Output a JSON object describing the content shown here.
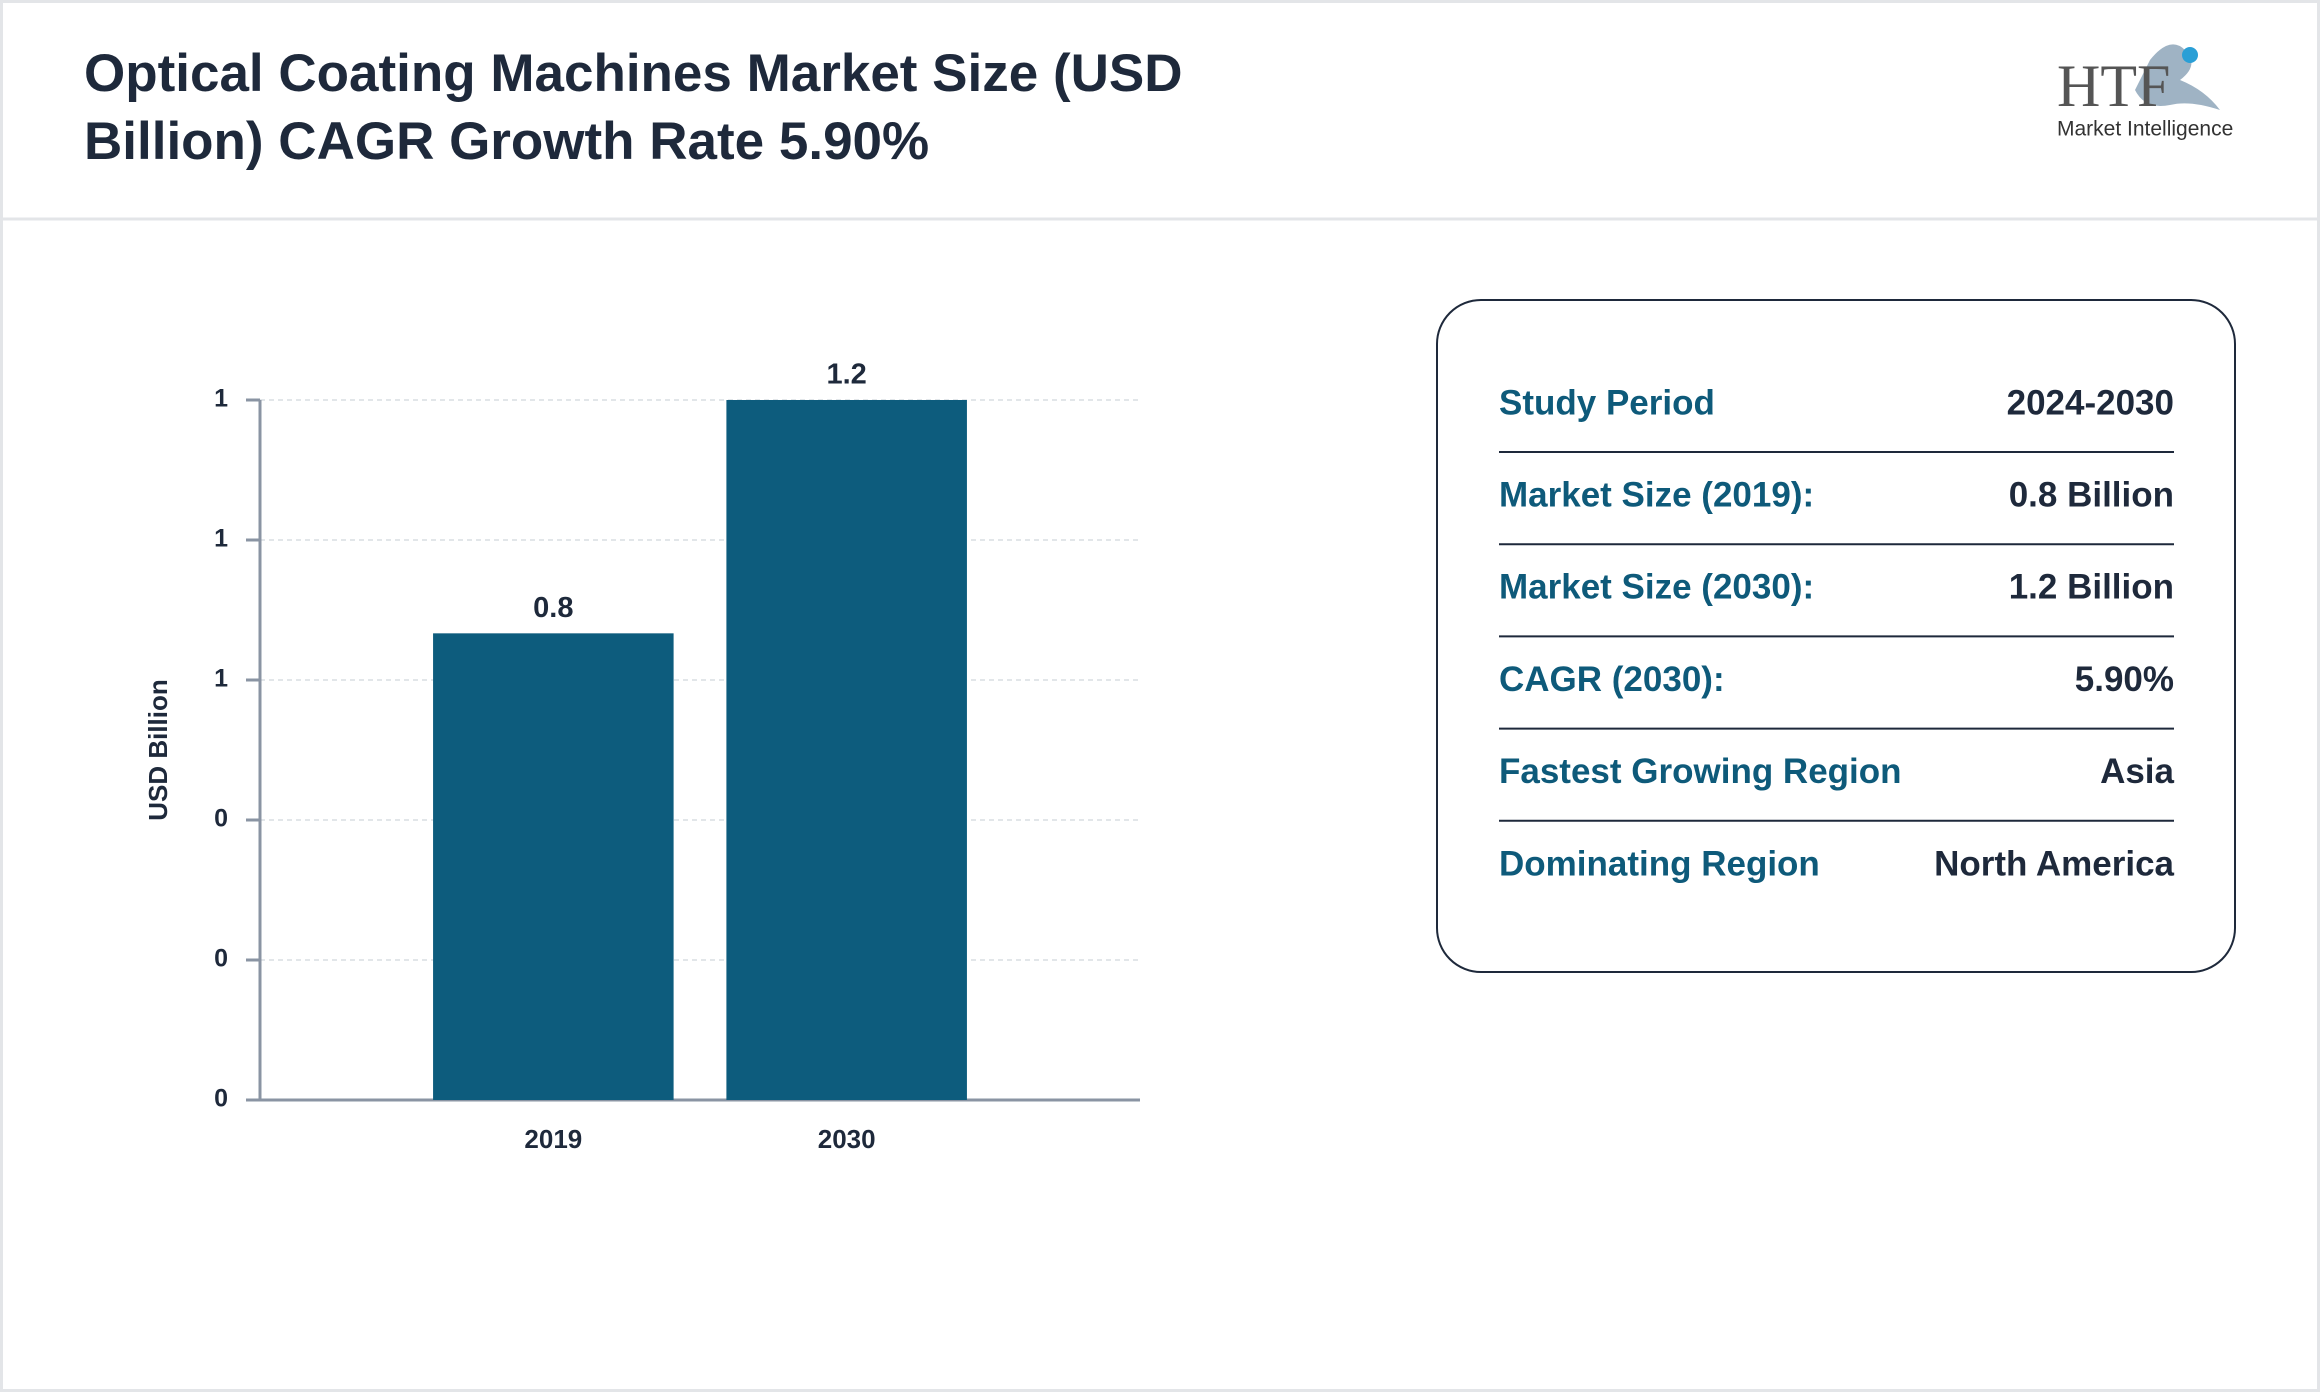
{
  "header": {
    "title_lines": [
      "Optical Coating Machines Market Size (USD",
      "Billion) CAGR Growth Rate 5.90%"
    ]
  },
  "logo": {
    "mark": "HTF",
    "tagline": "Market Intelligence"
  },
  "chart_data": {
    "type": "bar",
    "y_label": "USD Billion",
    "categories": [
      "2019",
      "2030"
    ],
    "values": [
      0.8,
      1.2
    ],
    "color": "#0d5c7d",
    "ylim": [
      0,
      1.2
    ],
    "yticks": [
      {
        "value": 0,
        "label": "0"
      },
      {
        "value": 0.24,
        "label": "0"
      },
      {
        "value": 0.48,
        "label": "0"
      },
      {
        "value": 0.72,
        "label": "1"
      },
      {
        "value": 0.96,
        "label": "1"
      },
      {
        "value": 1.2,
        "label": "1"
      }
    ],
    "grid": true
  },
  "info_panel": {
    "rows": [
      [
        "Study Period",
        "2024-2030"
      ],
      [
        "Market Size (2019):",
        "0.8 Billion"
      ],
      [
        "Market Size (2030):",
        "1.2 Billion"
      ],
      [
        "CAGR (2030):",
        "5.90%"
      ],
      [
        "Fastest Growing Region",
        "Asia"
      ],
      [
        "Dominating Region",
        "North America"
      ]
    ]
  }
}
